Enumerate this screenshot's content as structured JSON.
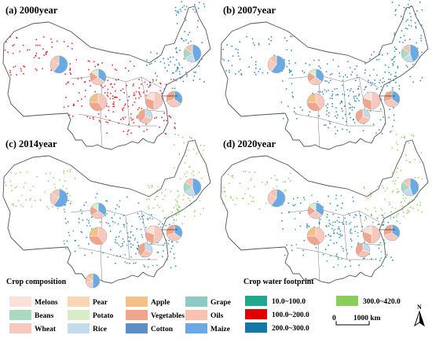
{
  "panels": [
    {
      "label": "(a) 2000year",
      "dots": "red"
    },
    {
      "label": "(b) 2007year",
      "dots": "blue"
    },
    {
      "label": "(c) 2014year",
      "dots": "green"
    },
    {
      "label": "(d) 2020year",
      "dots": "green"
    }
  ],
  "legend": {
    "crop_title": "Crop composition",
    "crops": [
      {
        "name": "Melons",
        "color": "#fbe2d8"
      },
      {
        "name": "Pear",
        "color": "#fcd6b4"
      },
      {
        "name": "Apple",
        "color": "#f3c086"
      },
      {
        "name": "Grape",
        "color": "#8ccbc4"
      },
      {
        "name": "Beans",
        "color": "#a9d9c0"
      },
      {
        "name": "Potato",
        "color": "#d8ecc8"
      },
      {
        "name": "Vegetables",
        "color": "#f1a58c"
      },
      {
        "name": "Oils",
        "color": "#f8c2b0"
      },
      {
        "name": "Wheat",
        "color": "#f7c8bd"
      },
      {
        "name": "Rice",
        "color": "#c3dced"
      },
      {
        "name": "Cotton",
        "color": "#5c8fc7"
      },
      {
        "name": "Maize",
        "color": "#6aaae2"
      }
    ],
    "wf_title": "Crop water footprint",
    "wf_classes": [
      {
        "range": "10.0~100.0",
        "color": "#1fa88c"
      },
      {
        "range": "300.0~420.0",
        "color": "#8acd5a"
      },
      {
        "range": "100.0~200.0",
        "color": "#e00000"
      },
      {
        "range": "200.0~300.0",
        "color": "#1576a8"
      }
    ],
    "scale": {
      "start": "0",
      "end": "1000 km"
    },
    "north": "N"
  }
}
